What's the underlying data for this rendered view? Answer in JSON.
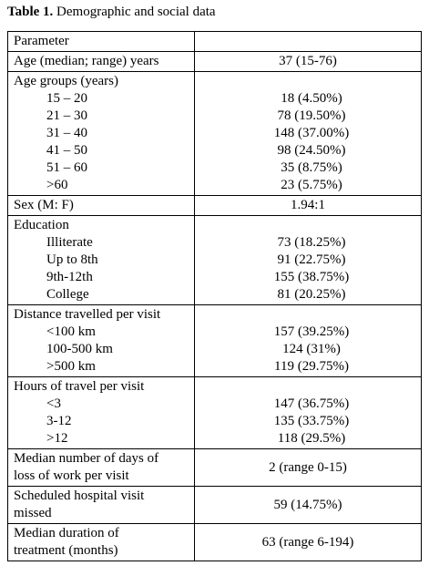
{
  "caption": {
    "label": "Table 1.",
    "text": " Demographic and social data"
  },
  "header": {
    "parameter": "Parameter",
    "value": ""
  },
  "age": {
    "label": "Age (median; range) years",
    "value": "37 (15-76)"
  },
  "age_groups": {
    "label": "Age groups (years)",
    "items": [
      {
        "label": "15 – 20",
        "value": "18 (4.50%)"
      },
      {
        "label": "21 – 30",
        "value": "78 (19.50%)"
      },
      {
        "label": "31 – 40",
        "value": "148 (37.00%)"
      },
      {
        "label": "41 – 50",
        "value": "98 (24.50%)"
      },
      {
        "label": "51 – 60",
        "value": "35 (8.75%)"
      },
      {
        "label": ">60",
        "value": "23 (5.75%)"
      }
    ]
  },
  "sex": {
    "label": "Sex (M: F)",
    "value": "1.94:1"
  },
  "education": {
    "label": "Education",
    "items": [
      {
        "label": "Illiterate",
        "value": "73 (18.25%)"
      },
      {
        "label": "Up to 8th",
        "value": "91 (22.75%)"
      },
      {
        "label": "9th-12th",
        "value": "155 (38.75%)"
      },
      {
        "label": "College",
        "value": "81 (20.25%)"
      }
    ]
  },
  "distance": {
    "label": "Distance travelled per visit",
    "items": [
      {
        "label": "<100 km",
        "value": "157 (39.25%)"
      },
      {
        "label": "100-500 km",
        "value": "124 (31%)"
      },
      {
        "label": ">500 km",
        "value": "119 (29.75%)"
      }
    ]
  },
  "hours": {
    "label": "Hours of travel per visit",
    "items": [
      {
        "label": "<3",
        "value": "147 (36.75%)"
      },
      {
        "label": "3-12",
        "value": "135 (33.75%)"
      },
      {
        "label": ">12",
        "value": "118 (29.5%)"
      }
    ]
  },
  "work_loss": {
    "label_1": "Median number of days of",
    "label_2": "loss of work per visit",
    "value": "2 (range 0-15)"
  },
  "missed": {
    "label_1": "Scheduled hospital visit",
    "label_2": "missed",
    "value": "59 (14.75%)"
  },
  "treatment": {
    "label_1": "Median duration of",
    "label_2": "treatment (months)",
    "value": "63 (range 6-194)"
  }
}
